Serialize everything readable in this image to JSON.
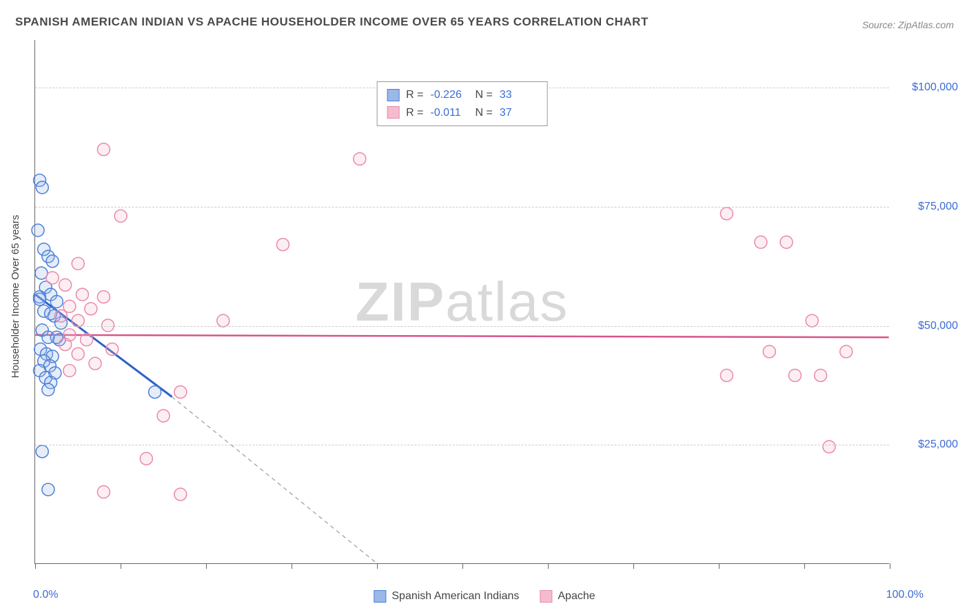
{
  "title": "SPANISH AMERICAN INDIAN VS APACHE HOUSEHOLDER INCOME OVER 65 YEARS CORRELATION CHART",
  "source_label": "Source:",
  "source_value": "ZipAtlas.com",
  "y_axis_label": "Householder Income Over 65 years",
  "watermark_bold": "ZIP",
  "watermark_rest": "atlas",
  "chart": {
    "type": "scatter",
    "xlim": [
      0,
      100
    ],
    "ylim": [
      0,
      110000
    ],
    "x_tick_positions": [
      0,
      10,
      20,
      30,
      40,
      50,
      60,
      70,
      80,
      90,
      100
    ],
    "x_tick_labels": {
      "0": "0.0%",
      "100": "100.0%"
    },
    "y_gridlines": [
      25000,
      50000,
      75000,
      100000
    ],
    "y_tick_labels": [
      "$25,000",
      "$50,000",
      "$75,000",
      "$100,000"
    ],
    "background_color": "#ffffff",
    "grid_color": "#cccccc",
    "axis_color": "#666666",
    "tick_label_color": "#3b6bd6",
    "marker_radius": 9,
    "marker_stroke_width": 1.5,
    "marker_fill_opacity": 0.25
  },
  "series": [
    {
      "name": "Spanish American Indians",
      "color_stroke": "#4a7fd8",
      "color_fill": "#9ab8e8",
      "stat_R": "-0.226",
      "stat_N": "33",
      "trend": {
        "x1": 0,
        "y1": 56500,
        "x2": 40,
        "y2": 0,
        "solid_x2": 16,
        "solid_y2": 35000,
        "color": "#2d5fc7",
        "width": 3
      },
      "points": [
        [
          0.5,
          80500
        ],
        [
          0.8,
          79000
        ],
        [
          0.3,
          70000
        ],
        [
          1.0,
          66000
        ],
        [
          1.5,
          64500
        ],
        [
          2.0,
          63500
        ],
        [
          0.7,
          61000
        ],
        [
          1.2,
          58000
        ],
        [
          0.5,
          56000
        ],
        [
          1.8,
          56500
        ],
        [
          2.5,
          55000
        ],
        [
          1.0,
          53000
        ],
        [
          2.2,
          52000
        ],
        [
          3.0,
          50500
        ],
        [
          0.8,
          49000
        ],
        [
          1.5,
          47500
        ],
        [
          2.8,
          47000
        ],
        [
          0.6,
          45000
        ],
        [
          1.3,
          44000
        ],
        [
          2.0,
          43500
        ],
        [
          1.0,
          42500
        ],
        [
          1.7,
          41500
        ],
        [
          0.5,
          40500
        ],
        [
          2.3,
          40000
        ],
        [
          1.2,
          39000
        ],
        [
          1.8,
          38000
        ],
        [
          1.5,
          36500
        ],
        [
          14.0,
          36000
        ],
        [
          0.8,
          23500
        ],
        [
          1.5,
          15500
        ],
        [
          0.5,
          55500
        ],
        [
          1.8,
          52500
        ],
        [
          2.5,
          47500
        ]
      ]
    },
    {
      "name": "Apache",
      "color_stroke": "#e88aa8",
      "color_fill": "#f5bccf",
      "stat_R": "-0.011",
      "stat_N": "37",
      "trend": {
        "x1": 0,
        "y1": 48000,
        "x2": 100,
        "y2": 47500,
        "color": "#d6548a",
        "width": 2.5
      },
      "points": [
        [
          8.0,
          87000
        ],
        [
          38.0,
          85000
        ],
        [
          10.0,
          73000
        ],
        [
          29.0,
          67000
        ],
        [
          81.0,
          73500
        ],
        [
          85.0,
          67500
        ],
        [
          88.0,
          67500
        ],
        [
          5.0,
          63000
        ],
        [
          2.0,
          60000
        ],
        [
          3.5,
          58500
        ],
        [
          5.5,
          56500
        ],
        [
          8.0,
          56000
        ],
        [
          4.0,
          54000
        ],
        [
          6.5,
          53500
        ],
        [
          3.0,
          52000
        ],
        [
          5.0,
          51000
        ],
        [
          22.0,
          51000
        ],
        [
          8.5,
          50000
        ],
        [
          91.0,
          51000
        ],
        [
          4.0,
          48000
        ],
        [
          6.0,
          47000
        ],
        [
          3.5,
          46000
        ],
        [
          9.0,
          45000
        ],
        [
          5.0,
          44000
        ],
        [
          86.0,
          44500
        ],
        [
          95.0,
          44500
        ],
        [
          7.0,
          42000
        ],
        [
          4.0,
          40500
        ],
        [
          81.0,
          39500
        ],
        [
          89.0,
          39500
        ],
        [
          92.0,
          39500
        ],
        [
          17.0,
          36000
        ],
        [
          15.0,
          31000
        ],
        [
          13.0,
          22000
        ],
        [
          8.0,
          15000
        ],
        [
          17.0,
          14500
        ],
        [
          93.0,
          24500
        ]
      ]
    }
  ],
  "stat_legend": {
    "R_label": "R =",
    "N_label": "N ="
  }
}
